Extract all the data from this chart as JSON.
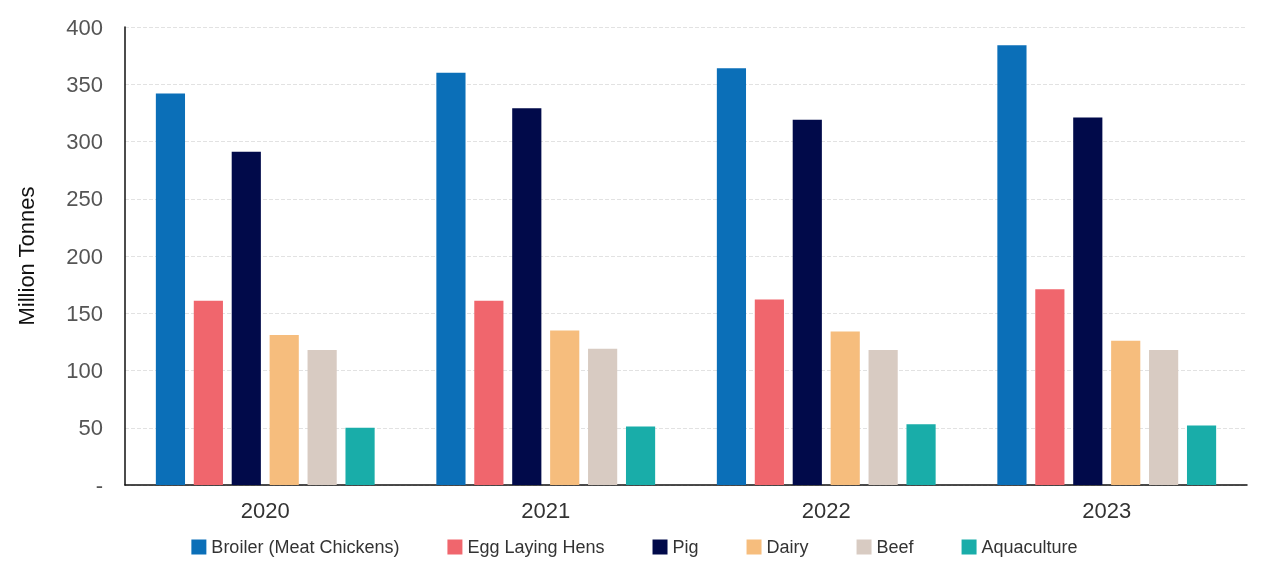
{
  "chart_data": {
    "type": "bar",
    "ylabel": "Million Tonnes",
    "categories": [
      "2020",
      "2021",
      "2022",
      "2023"
    ],
    "series": [
      {
        "name": "Broiler (Meat Chickens)",
        "color": "#0b6fb8",
        "values": [
          342,
          360,
          364,
          384
        ]
      },
      {
        "name": "Egg Laying Hens",
        "color": "#f0666d",
        "values": [
          161,
          161,
          162,
          171
        ]
      },
      {
        "name": "Pig",
        "color": "#010a4a",
        "values": [
          291,
          329,
          319,
          321
        ]
      },
      {
        "name": "Dairy",
        "color": "#f6bd7d",
        "values": [
          131,
          135,
          134,
          126
        ]
      },
      {
        "name": "Beef",
        "color": "#d8cbc2",
        "values": [
          118,
          119,
          118,
          118
        ]
      },
      {
        "name": "Aquaculture",
        "color": "#19ada9",
        "values": [
          50,
          51,
          53,
          52
        ]
      }
    ],
    "ylim": [
      0,
      400
    ],
    "yticks": [
      {
        "value": 0,
        "label": "-"
      },
      50,
      100,
      150,
      200,
      250,
      300,
      350,
      400
    ],
    "grid": "y",
    "legend": "bottom"
  }
}
